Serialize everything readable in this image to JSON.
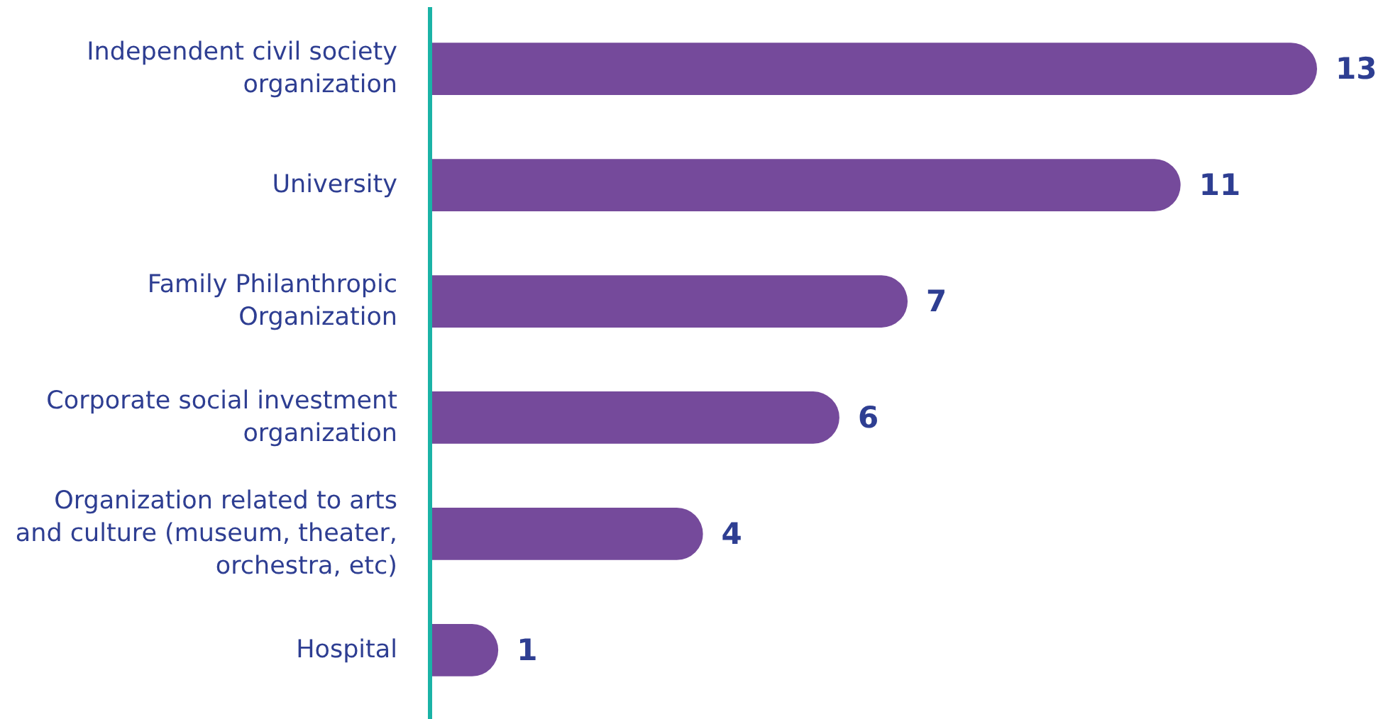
{
  "chart_data": {
    "type": "bar",
    "orientation": "horizontal",
    "categories": [
      "Independent civil society organization",
      "University",
      "Family Philanthropic Organization",
      "Corporate social investment organization",
      "Organization related to arts and culture (museum, theater, orchestra, etc)",
      "Hospital"
    ],
    "values": [
      13,
      11,
      7,
      6,
      4,
      1
    ],
    "color": "#754a9b",
    "data_labels": true,
    "tick_labels": "y"
  }
}
